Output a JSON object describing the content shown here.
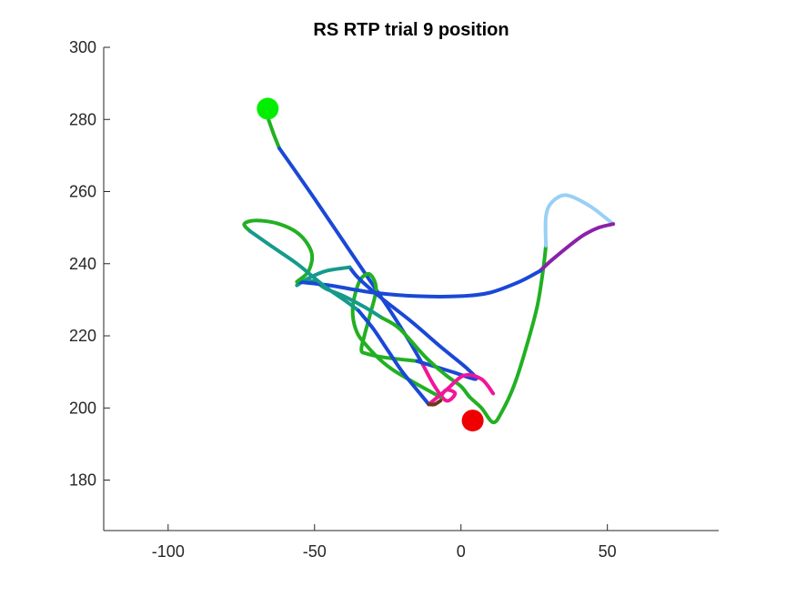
{
  "chart_data": {
    "type": "line",
    "title": "RS  RTP trial 9 position",
    "xlabel": "",
    "ylabel": "",
    "xlim": [
      -122,
      88
    ],
    "ylim": [
      166,
      300
    ],
    "xticks": [
      -100,
      -50,
      0,
      50
    ],
    "yticks": [
      180,
      200,
      220,
      240,
      260,
      280,
      300
    ],
    "grid": false,
    "legend": "none",
    "series": [
      {
        "color": "#22b022",
        "points": [
          [
            -67,
            283
          ],
          [
            -64,
            276
          ],
          [
            -62,
            272
          ]
        ]
      },
      {
        "color": "#1a48d6",
        "points": [
          [
            -62,
            272
          ],
          [
            -50,
            258
          ],
          [
            -35,
            240
          ],
          [
            -25,
            228
          ],
          [
            -18,
            219
          ],
          [
            -13,
            212
          ]
        ]
      },
      {
        "color": "#f0169a",
        "points": [
          [
            -13,
            212
          ],
          [
            -9,
            206
          ],
          [
            -5,
            202
          ],
          [
            -2,
            204
          ],
          [
            -5,
            205
          ],
          [
            -7,
            203
          ]
        ]
      },
      {
        "color": "#22b022",
        "points": [
          [
            -7,
            203
          ],
          [
            -24,
            211
          ],
          [
            -33,
            218
          ],
          [
            -36,
            222
          ],
          [
            -37,
            227
          ],
          [
            -36,
            232
          ],
          [
            -34,
            236
          ],
          [
            -31,
            237
          ],
          [
            -29,
            233
          ],
          [
            -31,
            226
          ],
          [
            -33,
            220
          ],
          [
            -34,
            216
          ],
          [
            -32,
            215
          ],
          [
            -26,
            214
          ],
          [
            -15,
            213
          ]
        ]
      },
      {
        "color": "#1a48d6",
        "points": [
          [
            -15,
            213
          ],
          [
            -3,
            210
          ],
          [
            5,
            208
          ],
          [
            2,
            211
          ],
          [
            -7,
            217
          ],
          [
            -17,
            224
          ],
          [
            -28,
            231
          ],
          [
            -35,
            236
          ],
          [
            -38,
            239
          ]
        ]
      },
      {
        "color": "#159a8c",
        "points": [
          [
            -38,
            239
          ],
          [
            -46,
            238
          ],
          [
            -52,
            236
          ],
          [
            -56,
            234
          ],
          [
            -54,
            235
          ],
          [
            -50,
            235
          ],
          [
            -46,
            233
          ],
          [
            -40,
            231
          ],
          [
            -33,
            228
          ],
          [
            -27,
            225
          ]
        ]
      },
      {
        "color": "#22b022",
        "points": [
          [
            -27,
            225
          ],
          [
            -21,
            222
          ],
          [
            -12,
            214
          ],
          [
            -5,
            209
          ],
          [
            0,
            206
          ],
          [
            3,
            203
          ],
          [
            7,
            200
          ],
          [
            11,
            196
          ],
          [
            14,
            199
          ],
          [
            18,
            206
          ],
          [
            22,
            216
          ],
          [
            26,
            228
          ],
          [
            28,
            238
          ],
          [
            29,
            245
          ]
        ]
      },
      {
        "color": "#99d0f5",
        "points": [
          [
            29,
            245
          ],
          [
            29,
            253
          ],
          [
            31,
            257
          ],
          [
            36,
            259
          ],
          [
            44,
            256
          ],
          [
            52,
            251
          ]
        ]
      },
      {
        "color": "#8a22a8",
        "points": [
          [
            52,
            251
          ],
          [
            47,
            250
          ],
          [
            42,
            248
          ],
          [
            37,
            245
          ],
          [
            31,
            241
          ],
          [
            27,
            238
          ]
        ]
      },
      {
        "color": "#1a48d6",
        "points": [
          [
            27,
            238
          ],
          [
            20,
            235
          ],
          [
            10,
            232
          ],
          [
            0,
            231
          ],
          [
            -15,
            231
          ],
          [
            -30,
            232
          ],
          [
            -45,
            234
          ],
          [
            -56,
            235
          ]
        ]
      },
      {
        "color": "#22b022",
        "points": [
          [
            -56,
            235
          ],
          [
            -52,
            238
          ],
          [
            -51,
            243
          ],
          [
            -55,
            248
          ],
          [
            -62,
            251
          ],
          [
            -70,
            252
          ],
          [
            -74,
            251
          ],
          [
            -72,
            249
          ]
        ]
      },
      {
        "color": "#159a8c",
        "points": [
          [
            -72,
            249
          ],
          [
            -65,
            245
          ],
          [
            -56,
            240
          ],
          [
            -47,
            234
          ],
          [
            -40,
            230
          ],
          [
            -35,
            227
          ]
        ]
      },
      {
        "color": "#1a48d6",
        "points": [
          [
            -35,
            227
          ],
          [
            -30,
            222
          ],
          [
            -25,
            216
          ],
          [
            -20,
            210
          ],
          [
            -15,
            205
          ],
          [
            -11,
            201
          ]
        ]
      },
      {
        "color": "#f0169a",
        "points": [
          [
            -11,
            201
          ],
          [
            -5,
            205
          ],
          [
            1,
            209
          ],
          [
            7,
            208
          ],
          [
            11,
            204
          ]
        ]
      },
      {
        "color": "#6b3a1c",
        "points": [
          [
            -11,
            201
          ],
          [
            -9,
            201
          ],
          [
            -7,
            202
          ]
        ]
      }
    ],
    "markers": [
      {
        "label": "start",
        "x": -66,
        "y": 283,
        "color": "#00ee00"
      },
      {
        "label": "end",
        "x": 4,
        "y": 196.5,
        "color": "#ee0000"
      }
    ]
  }
}
